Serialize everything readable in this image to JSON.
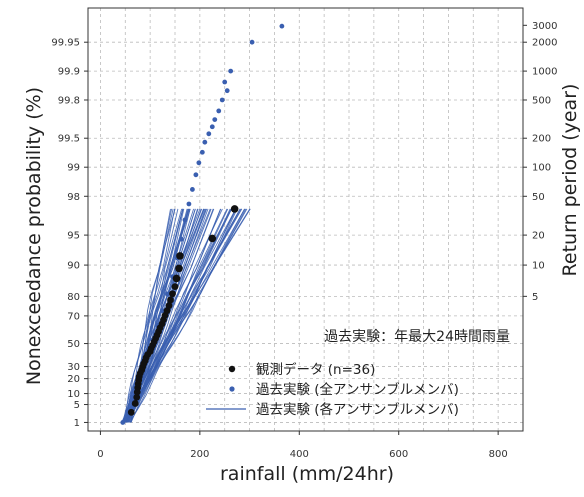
{
  "chart_data": {
    "type": "scatter",
    "xlabel": "rainfall (mm/24hr)",
    "ylabel_left": "Nonexceedance probability (%)",
    "ylabel_right": "Return period (year)",
    "xlim": [
      -25,
      850
    ],
    "x_ticks": [
      0,
      200,
      400,
      600,
      800
    ],
    "x_tick_labels": [
      "0",
      "200",
      "400",
      "600",
      "800"
    ],
    "left_axis": {
      "scale": "gumbel",
      "ticks": [
        1,
        5,
        10,
        20,
        30,
        50,
        70,
        80,
        90,
        95,
        98,
        99,
        99.5,
        99.8,
        99.9,
        99.95
      ],
      "tick_labels": [
        "1",
        "5",
        "10",
        "20",
        "30",
        "50",
        "70",
        "80",
        "90",
        "95",
        "98",
        "99",
        "99.5",
        "99.8",
        "99.9",
        "99.95"
      ]
    },
    "right_axis": {
      "ticks": [
        5,
        10,
        20,
        50,
        100,
        200,
        500,
        1000,
        2000,
        3000
      ],
      "tick_labels": [
        "5",
        "10",
        "20",
        "50",
        "100",
        "200",
        "500",
        "1000",
        "2000",
        "3000"
      ]
    },
    "grid": true,
    "legend_position": "bottom-right",
    "annotation": "過去実験：年最大24時間雨量",
    "series": [
      {
        "name": "観測データ (n=36)",
        "style": "points",
        "color": "#111111",
        "x": [
          62,
          70,
          73,
          74,
          75,
          76,
          77,
          78,
          80,
          83,
          85,
          87,
          90,
          92,
          95,
          100,
          102,
          105,
          108,
          111,
          114,
          117,
          120,
          124,
          127,
          130,
          134,
          138,
          141,
          145,
          150,
          153,
          158,
          160,
          225,
          270
        ],
        "y": [
          2.7,
          5.4,
          8.1,
          10.8,
          13.5,
          16.2,
          18.9,
          21.6,
          24.3,
          27,
          29.7,
          32.4,
          35.1,
          37.8,
          40.5,
          43.2,
          45.9,
          48.6,
          51.4,
          54.1,
          56.8,
          59.5,
          62.2,
          64.9,
          67.6,
          70.3,
          73,
          75.7,
          78.4,
          81.1,
          83.8,
          86.5,
          89.2,
          91.9,
          94.6,
          97.3
        ]
      },
      {
        "name": "過去実験 (全アンサンブルメンバ)",
        "style": "points",
        "color": "#3a5fb0",
        "x": [
          45,
          55,
          65,
          75,
          85,
          95,
          105,
          115,
          125,
          135,
          145,
          155,
          163,
          170,
          178,
          185,
          192,
          198,
          205,
          210,
          218,
          225,
          230,
          238,
          245,
          255,
          250,
          262,
          305,
          365
        ],
        "y": [
          1,
          3,
          8,
          17,
          28,
          40,
          53,
          64,
          73,
          81,
          87,
          91.5,
          94.5,
          96.5,
          97.6,
          98.3,
          98.8,
          99.1,
          99.3,
          99.45,
          99.55,
          99.62,
          99.68,
          99.74,
          99.8,
          99.84,
          99.87,
          99.9,
          99.95,
          99.966
        ]
      },
      {
        "name": "過去実験 (各アンサンブルメンバ)",
        "style": "lines",
        "color": "#3a5fb0",
        "members": 60,
        "x_range_at_p1": [
          45,
          60
        ],
        "x_range_at_p97": [
          140,
          300
        ]
      }
    ]
  },
  "colors": {
    "observed": "#111111",
    "ensemble": "#3a5fb0",
    "grid": "#bbbbbb",
    "axis": "#333333"
  }
}
